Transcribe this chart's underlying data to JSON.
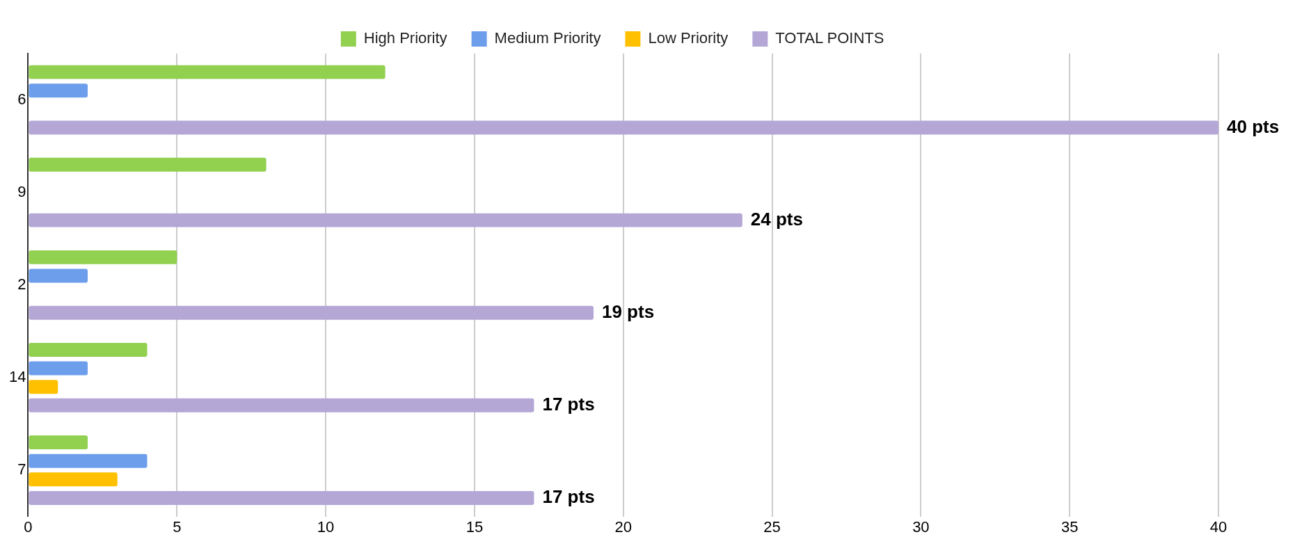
{
  "chart_data": {
    "type": "bar",
    "orientation": "horizontal",
    "categories": [
      "6",
      "9",
      "2",
      "14",
      "7"
    ],
    "series": [
      {
        "name": "High Priority",
        "color": "#92d050",
        "values": [
          12,
          8,
          5,
          4,
          2
        ]
      },
      {
        "name": "Medium Priority",
        "color": "#6d9eeb",
        "values": [
          2,
          null,
          2,
          2,
          4
        ]
      },
      {
        "name": "Low Priority",
        "color": "#ffc000",
        "values": [
          null,
          null,
          null,
          1,
          3
        ]
      },
      {
        "name": "TOTAL POINTS",
        "color": "#b4a7d6",
        "values": [
          40,
          24,
          19,
          17,
          17
        ],
        "value_labels": [
          "40 pts",
          "24 pts",
          "19 pts",
          "17 pts",
          "17 pts"
        ]
      }
    ],
    "xlim": [
      0,
      40
    ],
    "xticks": [
      0,
      5,
      10,
      15,
      20,
      25,
      30,
      35,
      40
    ],
    "grid": "x",
    "legend": "top"
  }
}
